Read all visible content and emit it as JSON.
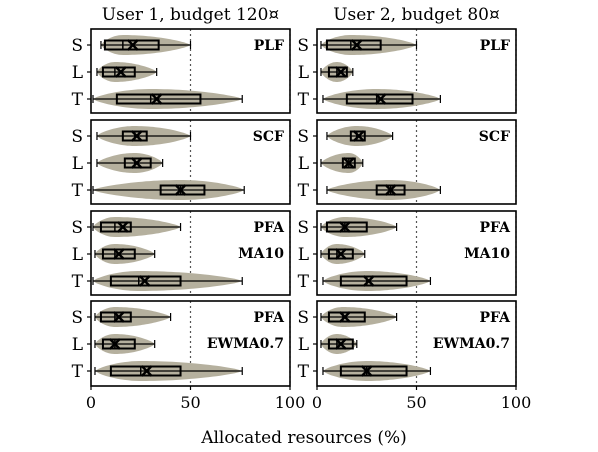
{
  "chart_data": {
    "type": "violin-box",
    "xlabel": "Allocated resources (%)",
    "xlim": [
      0,
      100
    ],
    "xticks": [
      0,
      50,
      100
    ],
    "reference_lines": [
      50,
      100
    ],
    "columns": [
      {
        "title": "User 1, budget 120¤"
      },
      {
        "title": "User 2, budget 80¤"
      }
    ],
    "row_categories": [
      "S",
      "L",
      "T"
    ],
    "rows": [
      {
        "labels": [
          "PLF"
        ],
        "panels": [
          {
            "series": [
              {
                "name": "S",
                "min": 5,
                "q1": 7,
                "median": 16,
                "q3": 34,
                "max": 50,
                "mean": 21
              },
              {
                "name": "L",
                "min": 3,
                "q1": 6,
                "median": 12,
                "q3": 22,
                "max": 33,
                "mean": 15
              },
              {
                "name": "T",
                "min": 1,
                "q1": 13,
                "median": 30,
                "q3": 55,
                "max": 76,
                "mean": 33
              }
            ]
          },
          {
            "series": [
              {
                "name": "S",
                "min": 2,
                "q1": 5,
                "median": 17,
                "q3": 32,
                "max": 50,
                "mean": 20
              },
              {
                "name": "L",
                "min": 2,
                "q1": 6,
                "median": 10,
                "q3": 15,
                "max": 18,
                "mean": 12
              },
              {
                "name": "T",
                "min": 3,
                "q1": 15,
                "median": 30,
                "q3": 48,
                "max": 62,
                "mean": 32
              }
            ]
          }
        ]
      },
      {
        "labels": [
          "SCF"
        ],
        "panels": [
          {
            "series": [
              {
                "name": "S",
                "min": 3,
                "q1": 16,
                "median": 22,
                "q3": 28,
                "max": 50,
                "mean": 23
              },
              {
                "name": "L",
                "min": 3,
                "q1": 17,
                "median": 22,
                "q3": 30,
                "max": 36,
                "mean": 23
              },
              {
                "name": "T",
                "min": 1,
                "q1": 35,
                "median": 45,
                "q3": 57,
                "max": 77,
                "mean": 45
              }
            ]
          },
          {
            "series": [
              {
                "name": "S",
                "min": 5,
                "q1": 17,
                "median": 20,
                "q3": 24,
                "max": 38,
                "mean": 21
              },
              {
                "name": "L",
                "min": 2,
                "q1": 13,
                "median": 16,
                "q3": 19,
                "max": 23,
                "mean": 16
              },
              {
                "name": "T",
                "min": 5,
                "q1": 30,
                "median": 37,
                "q3": 44,
                "max": 62,
                "mean": 37
              }
            ]
          }
        ]
      },
      {
        "labels": [
          "PFA",
          "MA10"
        ],
        "panels": [
          {
            "series": [
              {
                "name": "S",
                "min": 1,
                "q1": 5,
                "median": 12,
                "q3": 20,
                "max": 45,
                "mean": 16
              },
              {
                "name": "L",
                "min": 2,
                "q1": 6,
                "median": 12,
                "q3": 22,
                "max": 32,
                "mean": 14
              },
              {
                "name": "T",
                "min": 1,
                "q1": 10,
                "median": 24,
                "q3": 45,
                "max": 76,
                "mean": 27
              }
            ]
          },
          {
            "series": [
              {
                "name": "S",
                "min": 2,
                "q1": 5,
                "median": 14,
                "q3": 25,
                "max": 40,
                "mean": 14
              },
              {
                "name": "L",
                "min": 2,
                "q1": 6,
                "median": 10,
                "q3": 18,
                "max": 24,
                "mean": 12
              },
              {
                "name": "T",
                "min": 3,
                "q1": 12,
                "median": 25,
                "q3": 45,
                "max": 57,
                "mean": 26
              }
            ]
          }
        ]
      },
      {
        "labels": [
          "PFA",
          "EWMA0.7"
        ],
        "panels": [
          {
            "series": [
              {
                "name": "S",
                "min": 2,
                "q1": 5,
                "median": 12,
                "q3": 20,
                "max": 40,
                "mean": 14
              },
              {
                "name": "L",
                "min": 2,
                "q1": 6,
                "median": 12,
                "q3": 22,
                "max": 32,
                "mean": 12
              },
              {
                "name": "T",
                "min": 2,
                "q1": 10,
                "median": 25,
                "q3": 45,
                "max": 76,
                "mean": 28
              }
            ]
          },
          {
            "series": [
              {
                "name": "S",
                "min": 2,
                "q1": 6,
                "median": 13,
                "q3": 24,
                "max": 40,
                "mean": 14
              },
              {
                "name": "L",
                "min": 2,
                "q1": 6,
                "median": 10,
                "q3": 18,
                "max": 20,
                "mean": 12
              },
              {
                "name": "T",
                "min": 3,
                "q1": 12,
                "median": 25,
                "q3": 45,
                "max": 57,
                "mean": 25
              }
            ]
          }
        ]
      }
    ]
  },
  "colors": {
    "violin": "#b5b09e",
    "box_edge": "#000000",
    "reference_line": "#555555"
  }
}
